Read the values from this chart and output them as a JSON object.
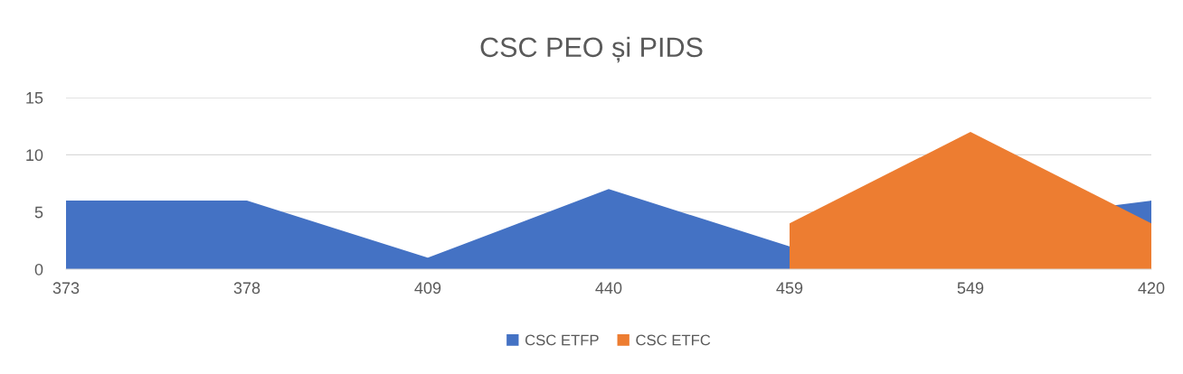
{
  "chart_data": {
    "type": "area",
    "title": "CSC PEO și PIDS",
    "categories": [
      "373",
      "378",
      "409",
      "440",
      "459",
      "549",
      "420"
    ],
    "series": [
      {
        "name": "CSC ETFP",
        "color": "#4472c4",
        "values": [
          6,
          6,
          1,
          7,
          2,
          null,
          6
        ]
      },
      {
        "name": "CSC ETFC",
        "color": "#ed7d31",
        "values": [
          null,
          null,
          null,
          null,
          4,
          12,
          4
        ]
      }
    ],
    "ylim": [
      0,
      15
    ],
    "yticks": [
      0,
      5,
      10,
      15
    ],
    "grid": "y",
    "legend": "bottom"
  }
}
